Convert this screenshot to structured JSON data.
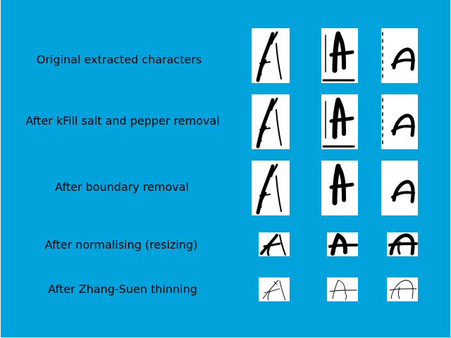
{
  "slide": {
    "background_color": "#00a3dc",
    "glyph_background_color": "#ffffff",
    "ink_color": "#000000"
  },
  "steps": [
    {
      "label": "Original extracted characters"
    },
    {
      "label": "After kFill salt and pepper removal"
    },
    {
      "label": "After boundary removal"
    },
    {
      "label": "After normalising (resizing)"
    },
    {
      "label": "After Zhang-Suen thinning"
    }
  ]
}
